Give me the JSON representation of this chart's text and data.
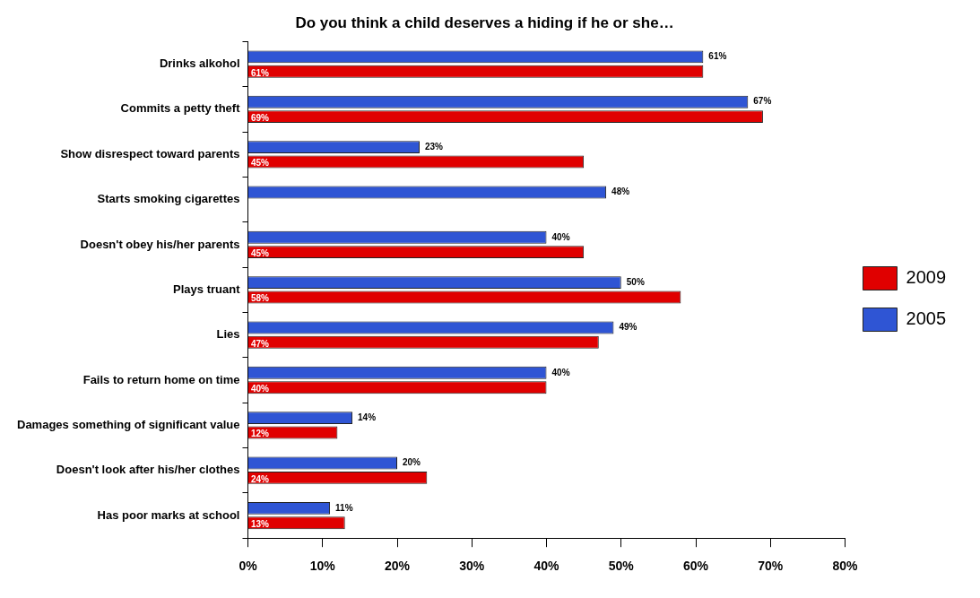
{
  "chart_data": {
    "type": "bar",
    "orientation": "horizontal",
    "title": "Do you think a child deserves a hiding if he or she…",
    "categories": [
      "Drinks alkohol",
      "Commits a petty theft",
      "Show disrespect toward parents",
      "Starts smoking cigarettes",
      "Doesn't obey his/her parents",
      "Plays truant",
      "Lies",
      "Fails to return home on time",
      "Damages something of significant value",
      "Doesn't look after his/her clothes",
      "Has poor marks at school"
    ],
    "series": [
      {
        "name": "2005",
        "color": "#2f55d4",
        "values": [
          61,
          67,
          23,
          48,
          40,
          50,
          49,
          40,
          14,
          20,
          11
        ],
        "value_labels": [
          "61%",
          "67%",
          "23%",
          "48%",
          "40%",
          "50%",
          "49%",
          "40%",
          "14%",
          "20%",
          "11%"
        ]
      },
      {
        "name": "2009",
        "color": "#e00000",
        "values": [
          61,
          69,
          45,
          null,
          45,
          58,
          47,
          40,
          12,
          24,
          13
        ],
        "value_labels": [
          "61%",
          "69%",
          "45%",
          null,
          "45%",
          "58%",
          "47%",
          "40%",
          "12%",
          "24%",
          "13%"
        ]
      }
    ],
    "xlim": [
      0,
      80
    ],
    "xticks": [
      {
        "value": 0,
        "label": "0%"
      },
      {
        "value": 10,
        "label": "10%"
      },
      {
        "value": 20,
        "label": "20%"
      },
      {
        "value": 30,
        "label": "30%"
      },
      {
        "value": 40,
        "label": "40%"
      },
      {
        "value": 50,
        "label": "50%"
      },
      {
        "value": 60,
        "label": "60%"
      },
      {
        "value": 70,
        "label": "70%"
      },
      {
        "value": 80,
        "label": "80%"
      }
    ],
    "grid": false,
    "legend": "right"
  }
}
